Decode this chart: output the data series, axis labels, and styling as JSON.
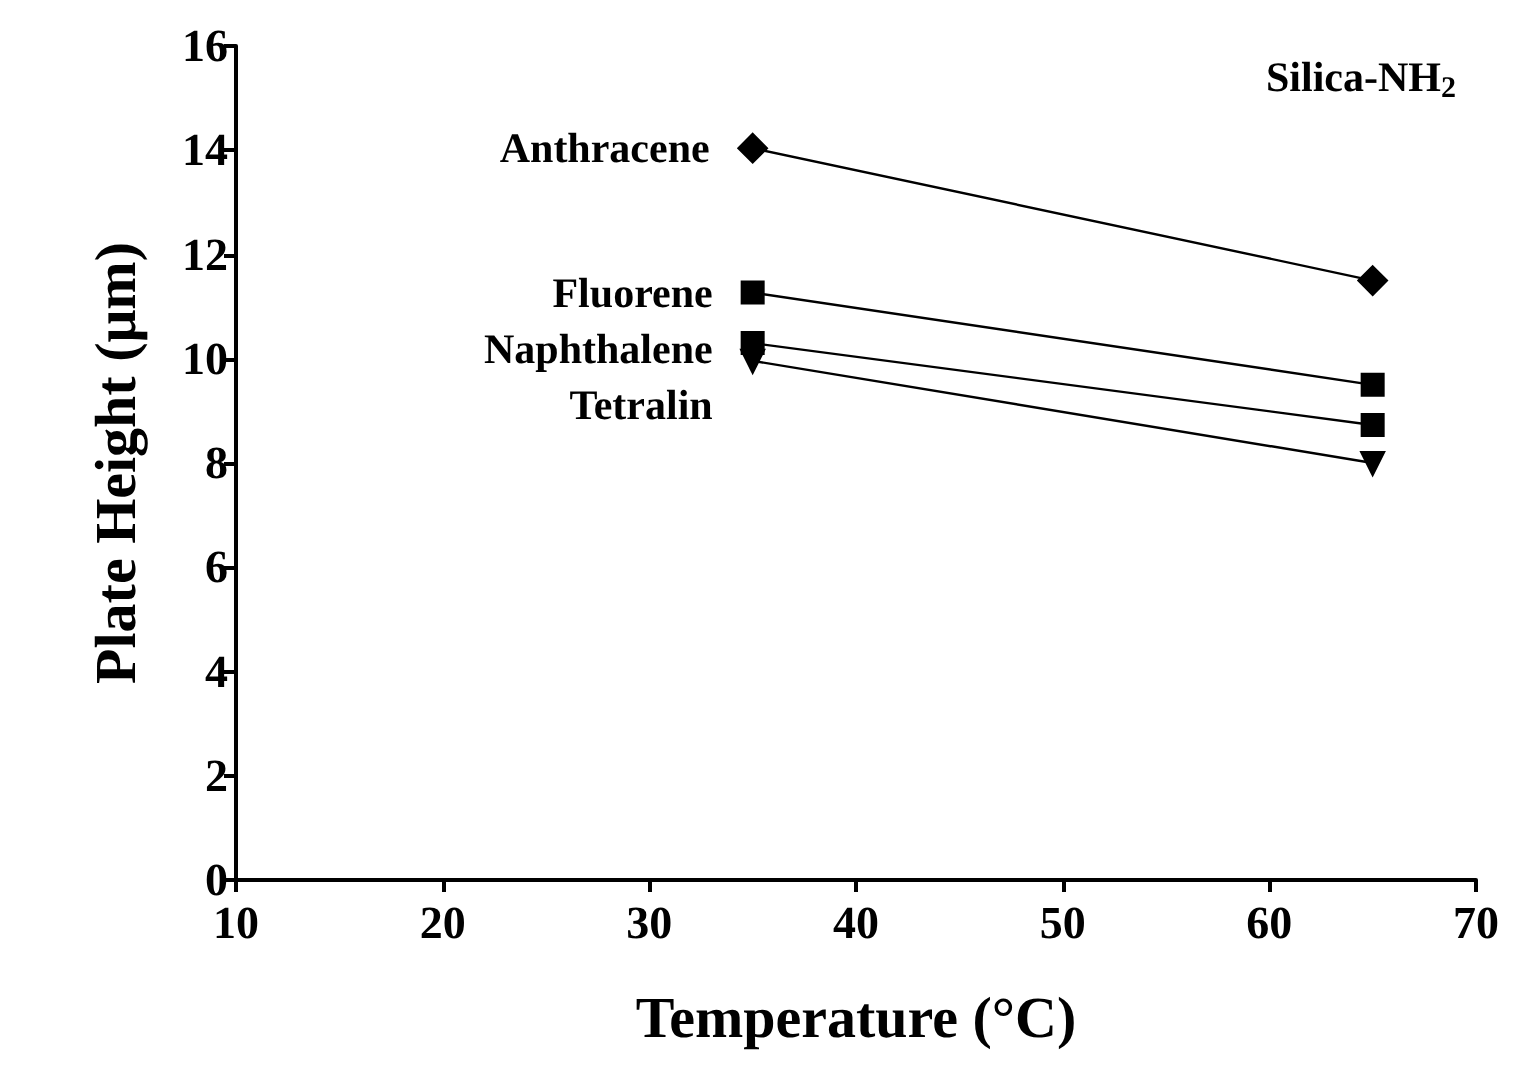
{
  "chart_data": {
    "type": "line",
    "xlabel": "Temperature (°C)",
    "ylabel": "Plate Height (μm)",
    "x": [
      35,
      65
    ],
    "xlim": [
      10,
      70
    ],
    "xticks": [
      10,
      20,
      30,
      40,
      50,
      60,
      70
    ],
    "ylim": [
      0,
      16
    ],
    "yticks": [
      0,
      2,
      4,
      6,
      8,
      10,
      12,
      14,
      16
    ],
    "grid": false,
    "legend": false,
    "line_style": "solid",
    "annotations": [
      "Silica-NH$_{2}$"
    ],
    "series": [
      {
        "name": "Anthracene",
        "color": "#000000",
        "marker": "diamond",
        "values": [
          14.04,
          11.5
        ]
      },
      {
        "name": "Fluorene",
        "color": "#000000",
        "marker": "square",
        "values": [
          11.27,
          9.5
        ]
      },
      {
        "name": "Naphthalene",
        "color": "#000000",
        "marker": "square",
        "values": [
          10.3,
          8.73
        ]
      },
      {
        "name": "Tetralin",
        "color": "#000000",
        "marker": "triangle",
        "values": [
          9.96,
          8.0
        ]
      }
    ]
  }
}
